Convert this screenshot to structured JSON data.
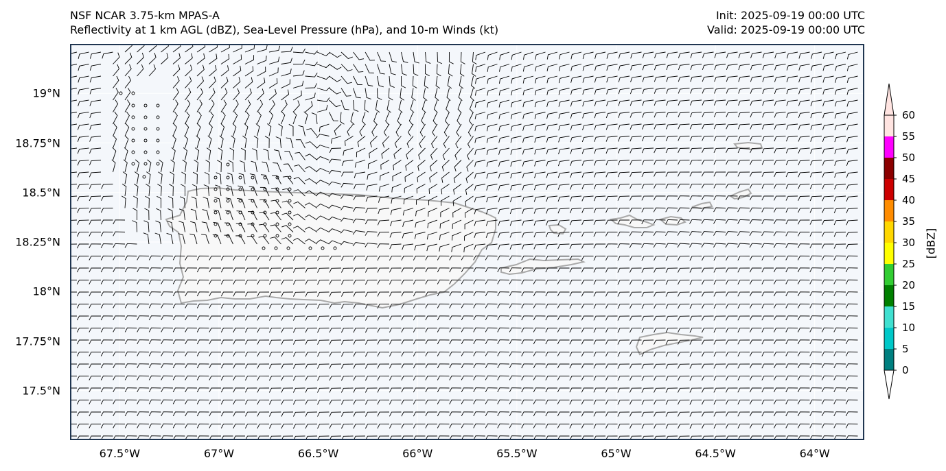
{
  "header": {
    "left_line1": "NSF NCAR 3.75-km MPAS-A",
    "left_line2": "Reflectivity at 1 km AGL (dBZ), Sea-Level Pressure (hPa), and 10-m Winds (kt)",
    "right_line1": "Init: 2025-09-19 00:00 UTC",
    "right_line2": "Valid: 2025-09-19 00:00 UTC"
  },
  "map": {
    "lon_range": [
      -67.75,
      -63.75
    ],
    "lat_range": [
      17.25,
      19.25
    ],
    "frame_color": "#1f3550",
    "land_outline_color": "#a9a9a9",
    "barb_color": "#000000",
    "lat_ticks": [
      {
        "value": 19.0,
        "label": "19°N"
      },
      {
        "value": 18.75,
        "label": "18.75°N"
      },
      {
        "value": 18.5,
        "label": "18.5°N"
      },
      {
        "value": 18.25,
        "label": "18.25°N"
      },
      {
        "value": 18.0,
        "label": "18°N"
      },
      {
        "value": 17.75,
        "label": "17.75°N"
      },
      {
        "value": 17.5,
        "label": "17.5°N"
      }
    ],
    "lon_ticks": [
      {
        "value": -67.5,
        "label": "67.5°W"
      },
      {
        "value": -67.0,
        "label": "67°W"
      },
      {
        "value": -66.5,
        "label": "66.5°W"
      },
      {
        "value": -66.0,
        "label": "66°W"
      },
      {
        "value": -65.5,
        "label": "65.5°W"
      },
      {
        "value": -65.0,
        "label": "65°W"
      },
      {
        "value": -64.5,
        "label": "64.5°W"
      },
      {
        "value": -64.0,
        "label": "64°W"
      }
    ]
  },
  "colorbar": {
    "label": "[dBZ]",
    "ticks": [
      "0",
      "5",
      "10",
      "15",
      "20",
      "25",
      "30",
      "35",
      "40",
      "45",
      "50",
      "55",
      "60"
    ],
    "colors": [
      "#ffffff",
      "#008080",
      "#00c8c8",
      "#40e0d0",
      "#008000",
      "#32cd32",
      "#ffff00",
      "#ffd700",
      "#ff8c00",
      "#cc0000",
      "#8b0000",
      "#ff00ff",
      "#ffe4e1"
    ]
  }
}
